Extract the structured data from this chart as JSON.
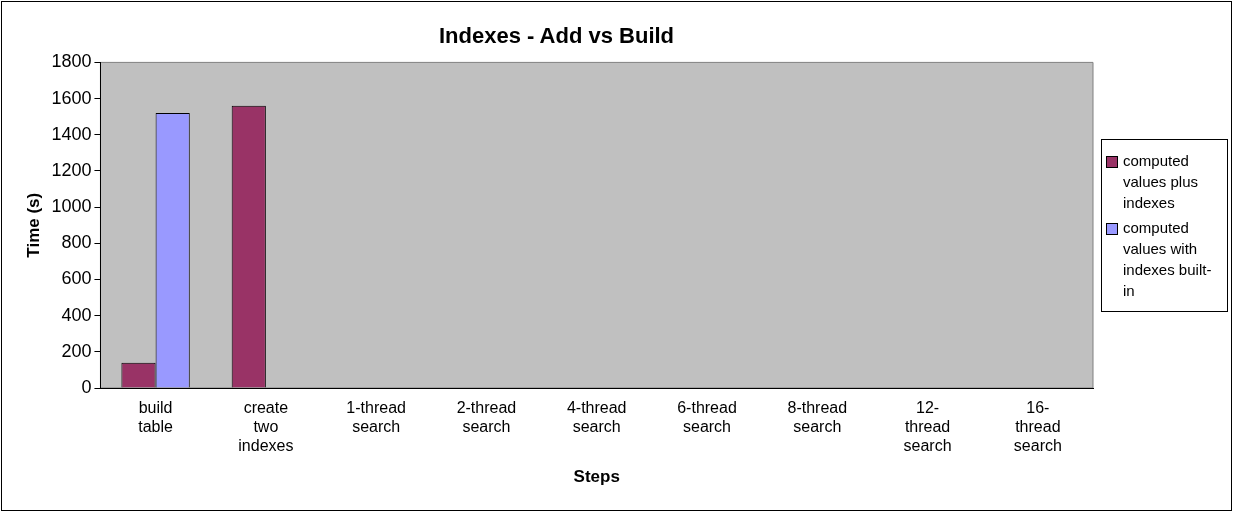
{
  "chart_data": {
    "type": "bar",
    "title": "Indexes - Add vs Build",
    "xlabel": "Steps",
    "ylabel": "Time (s)",
    "categories": [
      "build table",
      "create two indexes",
      "1-thread search",
      "2-thread search",
      "4-thread search",
      "6-thread search",
      "8-thread search",
      "12-thread search",
      "16-thread search"
    ],
    "series": [
      {
        "name": "computed values plus indexes",
        "color": "#993366",
        "values": [
          140,
          1560,
          0,
          0,
          0,
          0,
          0,
          0,
          0
        ]
      },
      {
        "name": "computed values with indexes built-in",
        "color": "#9999ff",
        "values": [
          1520,
          0,
          0,
          0,
          0,
          0,
          0,
          0,
          0
        ]
      }
    ],
    "ylim": [
      0,
      1800
    ],
    "yticks": [
      0,
      200,
      400,
      600,
      800,
      1000,
      1200,
      1400,
      1600,
      1800
    ],
    "grid": false,
    "legend": "right"
  }
}
